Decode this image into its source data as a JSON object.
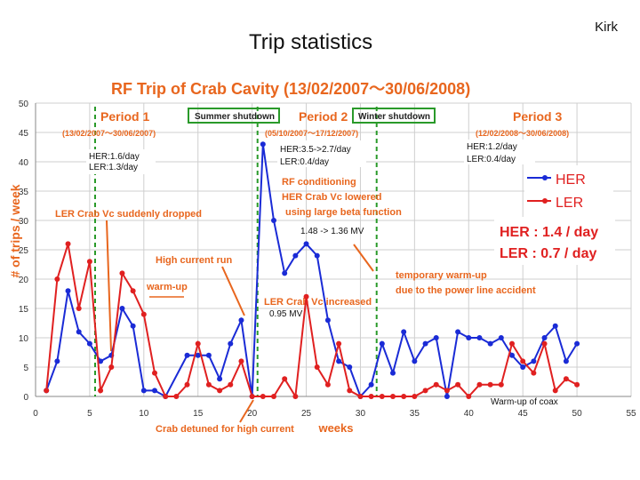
{
  "slide": {
    "title": "Trip statistics",
    "author": "Kirk"
  },
  "chart_data": {
    "type": "line",
    "title": "RF Trip of Crab Cavity (13/02/2007～30/06/2008)",
    "xlabel": "weeks",
    "ylabel": "# of trips / week",
    "xlim": [
      0,
      55
    ],
    "ylim": [
      0,
      50
    ],
    "xticks": [
      0,
      5,
      10,
      15,
      20,
      25,
      30,
      35,
      40,
      45,
      50,
      55
    ],
    "yticks": [
      0,
      5,
      10,
      15,
      20,
      25,
      30,
      35,
      40,
      45,
      50
    ],
    "grid": true,
    "colors": {
      "HER": "#1a2bd6",
      "LER": "#e02020",
      "annotation": "#e8661e",
      "box": "#2a9a2a"
    },
    "series": [
      {
        "name": "HER",
        "points": [
          [
            1,
            1
          ],
          [
            2,
            6
          ],
          [
            3,
            18
          ],
          [
            4,
            11
          ],
          [
            5,
            9
          ],
          [
            6,
            6
          ],
          [
            7,
            7
          ],
          [
            8,
            15
          ],
          [
            9,
            12
          ],
          [
            10,
            1
          ],
          [
            11,
            1
          ],
          [
            12,
            0
          ],
          [
            14,
            7
          ],
          [
            15,
            7
          ],
          [
            16,
            7
          ],
          [
            17,
            3
          ],
          [
            18,
            9
          ],
          [
            19,
            13
          ],
          [
            20,
            0
          ],
          [
            21,
            43
          ],
          [
            22,
            30
          ],
          [
            23,
            21
          ],
          [
            24,
            24
          ],
          [
            25,
            26
          ],
          [
            26,
            24
          ],
          [
            27,
            13
          ],
          [
            28,
            6
          ],
          [
            29,
            5
          ],
          [
            30,
            0
          ],
          [
            31,
            2
          ],
          [
            32,
            9
          ],
          [
            33,
            4
          ],
          [
            34,
            11
          ],
          [
            35,
            6
          ],
          [
            36,
            9
          ],
          [
            37,
            10
          ],
          [
            38,
            0
          ],
          [
            39,
            11
          ],
          [
            40,
            10
          ],
          [
            41,
            10
          ],
          [
            42,
            9
          ],
          [
            43,
            10
          ],
          [
            44,
            7
          ],
          [
            45,
            5
          ],
          [
            46,
            6
          ],
          [
            47,
            10
          ],
          [
            48,
            12
          ],
          [
            49,
            6
          ],
          [
            50,
            9
          ]
        ]
      },
      {
        "name": "LER",
        "points": [
          [
            1,
            1
          ],
          [
            2,
            20
          ],
          [
            3,
            26
          ],
          [
            4,
            15
          ],
          [
            5,
            23
          ],
          [
            6,
            1
          ],
          [
            7,
            5
          ],
          [
            8,
            21
          ],
          [
            9,
            18
          ],
          [
            10,
            14
          ],
          [
            11,
            4
          ],
          [
            12,
            0
          ],
          [
            13,
            0
          ],
          [
            14,
            2
          ],
          [
            15,
            9
          ],
          [
            16,
            2
          ],
          [
            17,
            1
          ],
          [
            18,
            2
          ],
          [
            19,
            6
          ],
          [
            20,
            0
          ],
          [
            21,
            0
          ],
          [
            22,
            0
          ],
          [
            23,
            3
          ],
          [
            24,
            0
          ],
          [
            25,
            17
          ],
          [
            26,
            5
          ],
          [
            27,
            2
          ],
          [
            28,
            9
          ],
          [
            29,
            1
          ],
          [
            30,
            0
          ],
          [
            31,
            0
          ],
          [
            32,
            0
          ],
          [
            33,
            0
          ],
          [
            34,
            0
          ],
          [
            35,
            0
          ],
          [
            36,
            1
          ],
          [
            37,
            2
          ],
          [
            38,
            1
          ],
          [
            39,
            2
          ],
          [
            40,
            0
          ],
          [
            41,
            2
          ],
          [
            42,
            2
          ],
          [
            43,
            2
          ],
          [
            44,
            9
          ],
          [
            45,
            6
          ],
          [
            46,
            4
          ],
          [
            47,
            9
          ],
          [
            48,
            1
          ],
          [
            49,
            3
          ],
          [
            50,
            2
          ]
        ]
      }
    ],
    "periods": [
      {
        "label": "Period 1",
        "dates": "(13/02/2007～30/06/2007)",
        "rates": [
          "HER:1.6/day",
          "LER:1.3/day"
        ]
      },
      {
        "label": "Period 2",
        "dates": "(05/10/2007～17/12/2007)",
        "rates": [
          "HER:3.5->2.7/day",
          "LER:0.4/day"
        ]
      },
      {
        "label": "Period 3",
        "dates": "(12/02/2008～30/06/2008)",
        "rates": [
          "HER:1.2/day",
          "LER:0.4/day"
        ]
      }
    ],
    "shutdowns": [
      "Summer shutdown",
      "Winter shutdown"
    ],
    "annotations": {
      "ler_dropped": "LER Crab Vc suddenly dropped",
      "high_current_run": "High current run",
      "warmup": "warm-up",
      "rf_conditioning": [
        "RF conditioning",
        "HER Crab Vc lowered",
        "using large beta function"
      ],
      "her_voltage": "1.48 -> 1.36 MV",
      "ler_increased": "LER Crab Vc increased",
      "ler_voltage": "0.95 MV",
      "temporary_warmup": [
        "temporary warm-up",
        "due to the power line accident"
      ],
      "crab_detuned": "Crab detuned for high current",
      "warmup_coax": "Warm-up of coax"
    },
    "legend": {
      "entries": [
        "HER",
        "LER"
      ],
      "position": "right"
    },
    "summary": {
      "her": "HER : 1.4 / day",
      "ler": "LER : 0.7 / day"
    }
  }
}
